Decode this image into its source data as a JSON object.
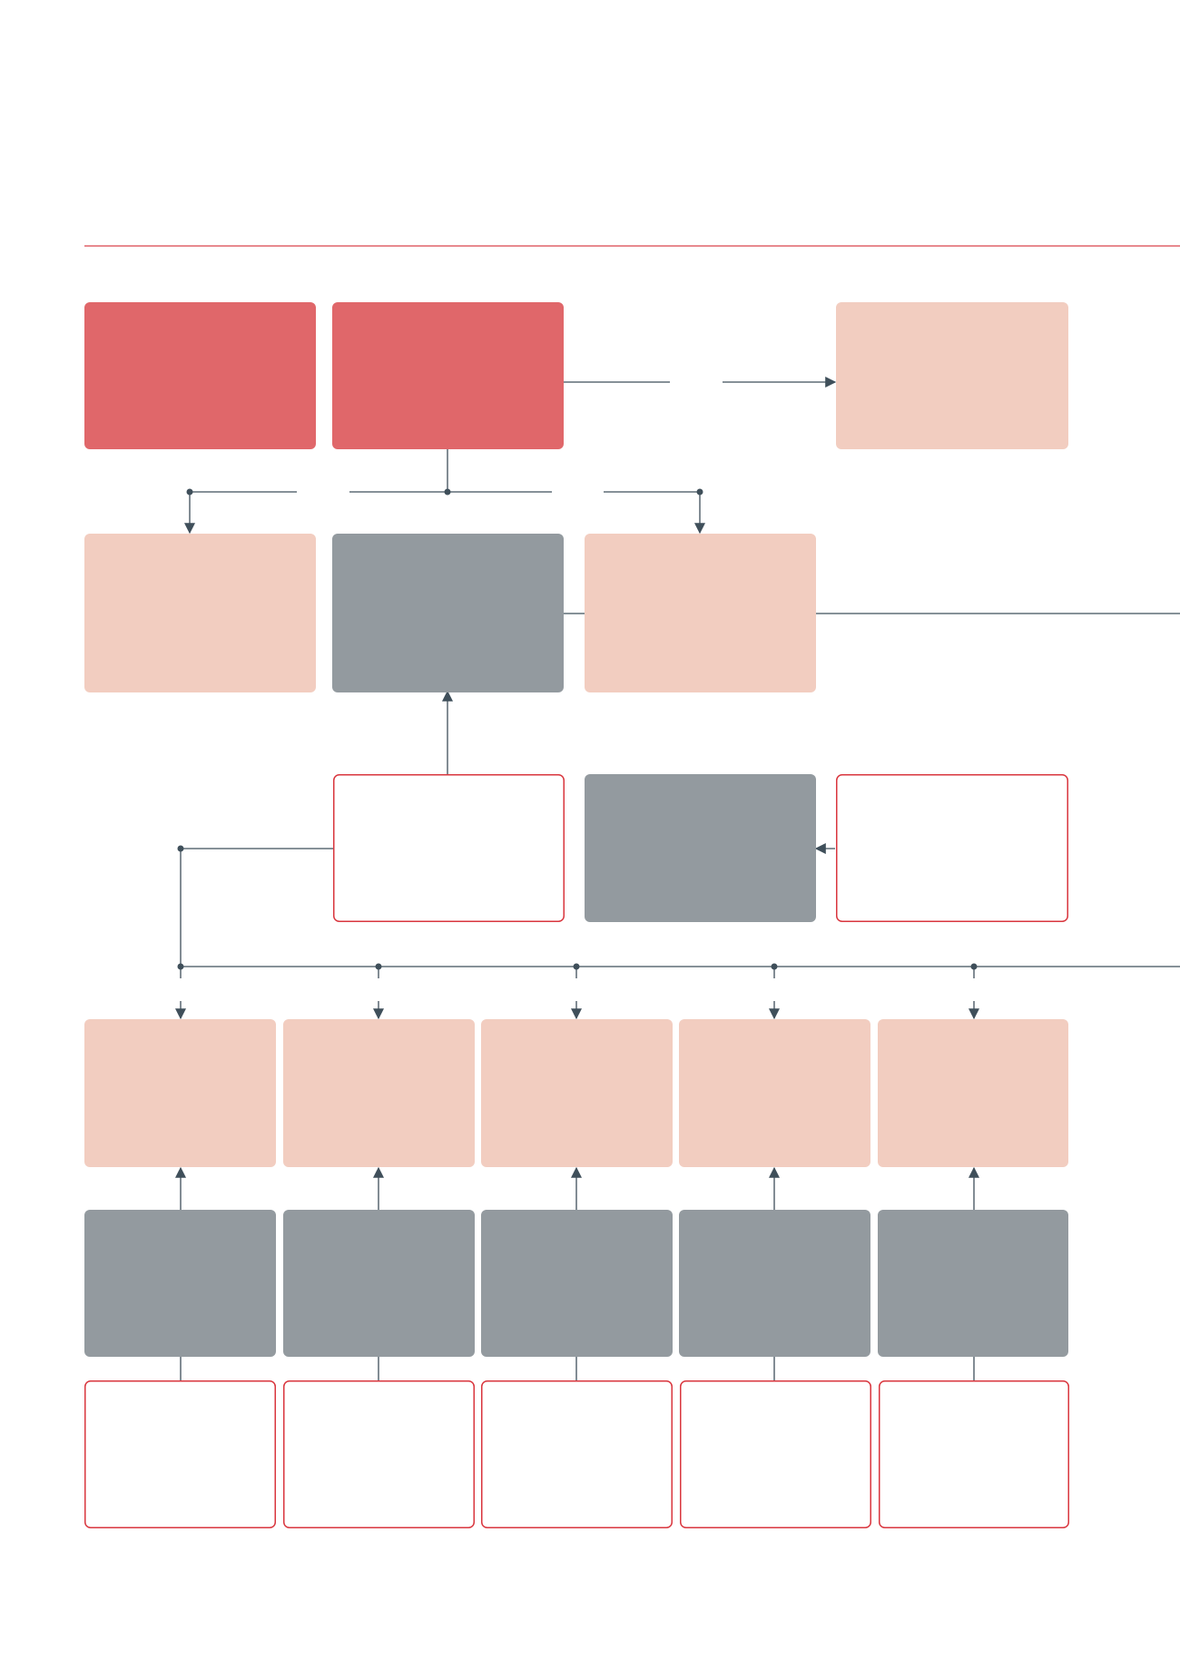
{
  "colors": {
    "background": "#ffffff",
    "rule": "#e0646a",
    "primary_fill": "#e0676a",
    "light_fill": "#f2cdc0",
    "grey_fill": "#939a9f",
    "outline_stroke": "#d9363e",
    "connector": "#3f4f5a"
  },
  "boxes": [
    {
      "id": "r1-a",
      "style": "primary"
    },
    {
      "id": "r1-b",
      "style": "primary"
    },
    {
      "id": "r1-c",
      "style": "light"
    },
    {
      "id": "r2-a",
      "style": "light"
    },
    {
      "id": "r2-b",
      "style": "grey"
    },
    {
      "id": "r2-c",
      "style": "light"
    },
    {
      "id": "r3-a",
      "style": "outline"
    },
    {
      "id": "r3-b",
      "style": "grey"
    },
    {
      "id": "r3-c",
      "style": "outline"
    },
    {
      "id": "r4-1",
      "style": "light"
    },
    {
      "id": "r4-2",
      "style": "light"
    },
    {
      "id": "r4-3",
      "style": "light"
    },
    {
      "id": "r4-4",
      "style": "light"
    },
    {
      "id": "r4-5",
      "style": "light"
    },
    {
      "id": "r5-1",
      "style": "grey"
    },
    {
      "id": "r5-2",
      "style": "grey"
    },
    {
      "id": "r5-3",
      "style": "grey"
    },
    {
      "id": "r5-4",
      "style": "grey"
    },
    {
      "id": "r5-5",
      "style": "grey"
    },
    {
      "id": "r6-1",
      "style": "outline"
    },
    {
      "id": "r6-2",
      "style": "outline"
    },
    {
      "id": "r6-3",
      "style": "outline"
    },
    {
      "id": "r6-4",
      "style": "outline"
    },
    {
      "id": "r6-5",
      "style": "outline"
    }
  ]
}
